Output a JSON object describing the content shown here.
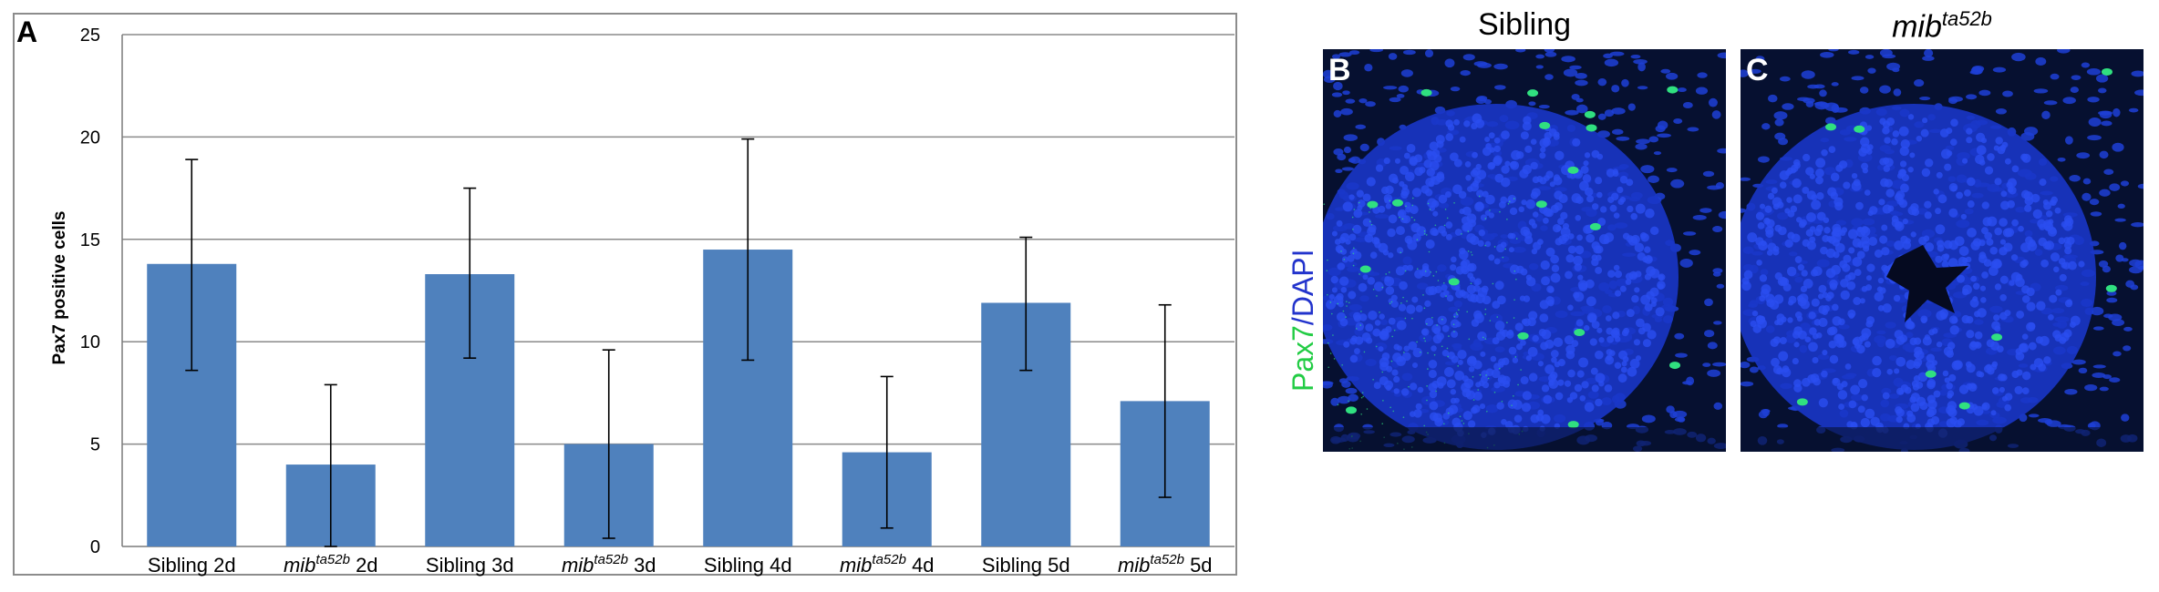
{
  "chart_data": {
    "type": "bar",
    "panel_label": "A",
    "categories": [
      {
        "base": "Sibling",
        "sup": "",
        "suffix": " 2d"
      },
      {
        "base": "mib",
        "sup": "ta52b",
        "suffix": " 2d"
      },
      {
        "base": "Sibling",
        "sup": "",
        "suffix": " 3d"
      },
      {
        "base": "mib",
        "sup": "ta52b",
        "suffix": " 3d"
      },
      {
        "base": "Sibling",
        "sup": "",
        "suffix": " 4d"
      },
      {
        "base": "mib",
        "sup": "ta52b",
        "suffix": " 4d"
      },
      {
        "base": "Sibling",
        "sup": "",
        "suffix": " 5d"
      },
      {
        "base": "mib",
        "sup": "ta52b",
        "suffix": " 5d"
      }
    ],
    "values": [
      13.8,
      4.0,
      13.3,
      5.0,
      14.5,
      4.6,
      11.9,
      7.1
    ],
    "error_low": [
      8.6,
      0.0,
      9.2,
      0.4,
      9.1,
      0.9,
      8.6,
      2.4
    ],
    "error_high": [
      18.9,
      7.9,
      17.5,
      9.6,
      19.9,
      8.3,
      15.1,
      11.8
    ],
    "ylabel": "Pax7 positive cells",
    "ylim": [
      0,
      25
    ],
    "yticks": [
      0,
      5,
      10,
      15,
      20,
      25
    ],
    "grid": true,
    "bar_color": "#4f81bd"
  },
  "panel_b": {
    "letter": "B",
    "title": "Sibling"
  },
  "panel_c": {
    "letter": "C",
    "title_base": "mib",
    "title_sup": "ta52b"
  },
  "stain_label": {
    "green_text": "Pax7",
    "blue_text": "/DAPI",
    "green_color": "#22cc44",
    "blue_color": "#2233cc"
  },
  "colors": {
    "nuclei": "#1f3fd6",
    "background": "#061030",
    "pax7": "#30e080"
  }
}
